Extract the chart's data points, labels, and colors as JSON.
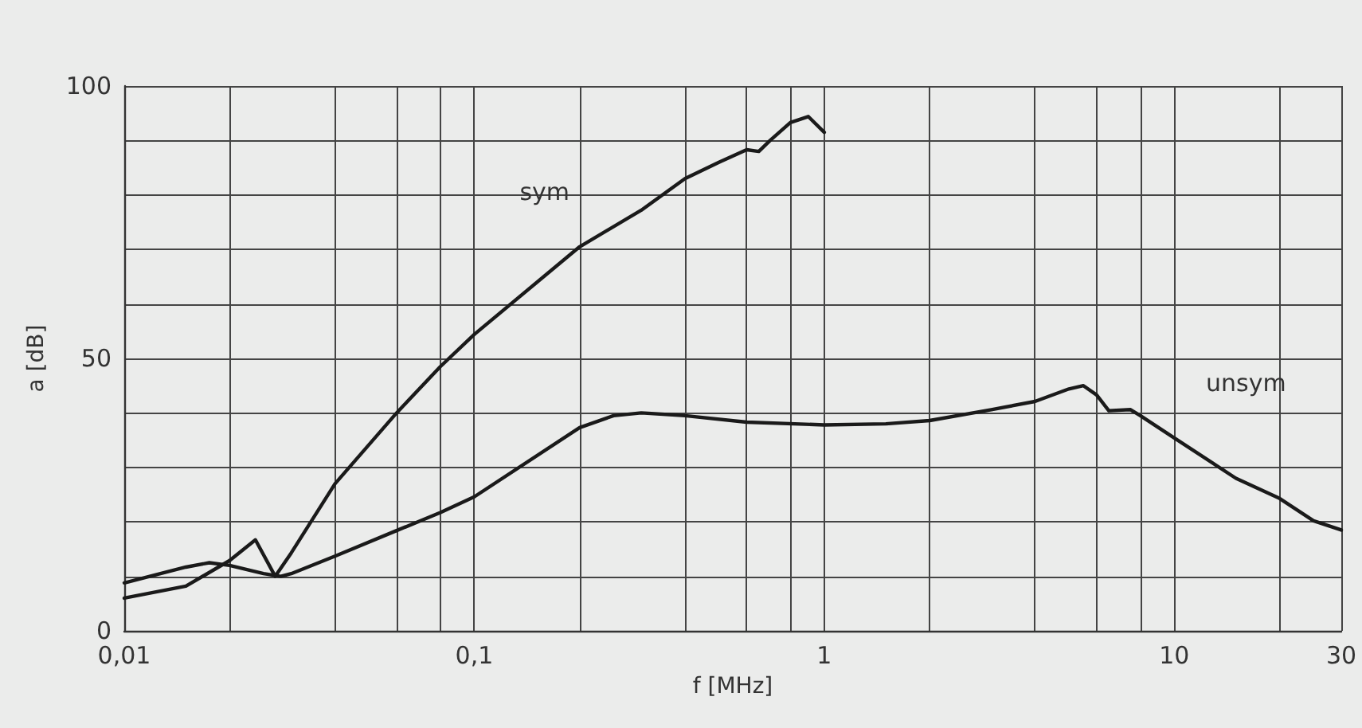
{
  "chart_data": {
    "type": "line",
    "xlabel": "f [MHz]",
    "ylabel": "a [dB]",
    "log": "x",
    "grid": true,
    "marker": "none",
    "line_style": "solid",
    "xlim": [
      0.01,
      30
    ],
    "xticks": [
      {
        "value": 0.01,
        "label": "0,01"
      },
      {
        "value": 0.02,
        "label": null
      },
      {
        "value": 0.04,
        "label": null
      },
      {
        "value": 0.06,
        "label": null
      },
      {
        "value": 0.08,
        "label": null
      },
      {
        "value": 0.1,
        "label": "0,1"
      },
      {
        "value": 0.2,
        "label": null
      },
      {
        "value": 0.4,
        "label": null
      },
      {
        "value": 0.6,
        "label": null
      },
      {
        "value": 0.8,
        "label": null
      },
      1,
      {
        "value": 2,
        "label": null
      },
      {
        "value": 4,
        "label": null
      },
      {
        "value": 6,
        "label": null
      },
      {
        "value": 8,
        "label": null
      },
      10,
      {
        "value": 20,
        "label": null
      },
      30
    ],
    "ylim": [
      0,
      100
    ],
    "yticks": [
      0,
      {
        "value": 10,
        "label": null
      },
      {
        "value": 20,
        "label": null
      },
      {
        "value": 30,
        "label": null
      },
      {
        "value": 40,
        "label": null
      },
      50,
      {
        "value": 60,
        "label": null
      },
      {
        "value": 70,
        "label": null
      },
      {
        "value": 80,
        "label": null
      },
      {
        "value": 90,
        "label": null
      },
      100
    ],
    "series": [
      {
        "name": "sym",
        "color": "#1a1a1a",
        "x": [
          0.01,
          0.015,
          0.02,
          0.0237,
          0.027,
          0.03,
          0.04,
          0.06,
          0.08,
          0.1,
          0.2,
          0.3,
          0.4,
          0.5,
          0.6,
          0.65,
          0.7,
          0.8,
          0.9,
          1
        ],
        "values": [
          6,
          8.2,
          12.9,
          16.7,
          10,
          14.3,
          27,
          40,
          48.5,
          54.4,
          70.5,
          77.2,
          83,
          86,
          88.3,
          88,
          90,
          93.3,
          94.4,
          91.5
        ]
      },
      {
        "name": "unsym",
        "color": "#1a1a1a",
        "x": [
          0.01,
          0.015,
          0.0175,
          0.02,
          0.025,
          0.028,
          0.03,
          0.04,
          0.06,
          0.08,
          0.1,
          0.2,
          0.25,
          0.3,
          0.4,
          0.6,
          1,
          1.5,
          2,
          3,
          4,
          5,
          5.5,
          6,
          6.5,
          7.5,
          8,
          10,
          15,
          20,
          25,
          30
        ],
        "values": [
          8.8,
          11.7,
          12.5,
          12,
          10.5,
          10,
          10.5,
          13.7,
          18.4,
          21.7,
          24.6,
          37.3,
          39.5,
          40,
          39.5,
          38.3,
          37.8,
          38,
          38.6,
          40.6,
          42.1,
          44.4,
          45,
          43.3,
          40.4,
          40.6,
          39.5,
          35.4,
          28,
          24.3,
          20.2,
          18.5
        ]
      }
    ]
  }
}
